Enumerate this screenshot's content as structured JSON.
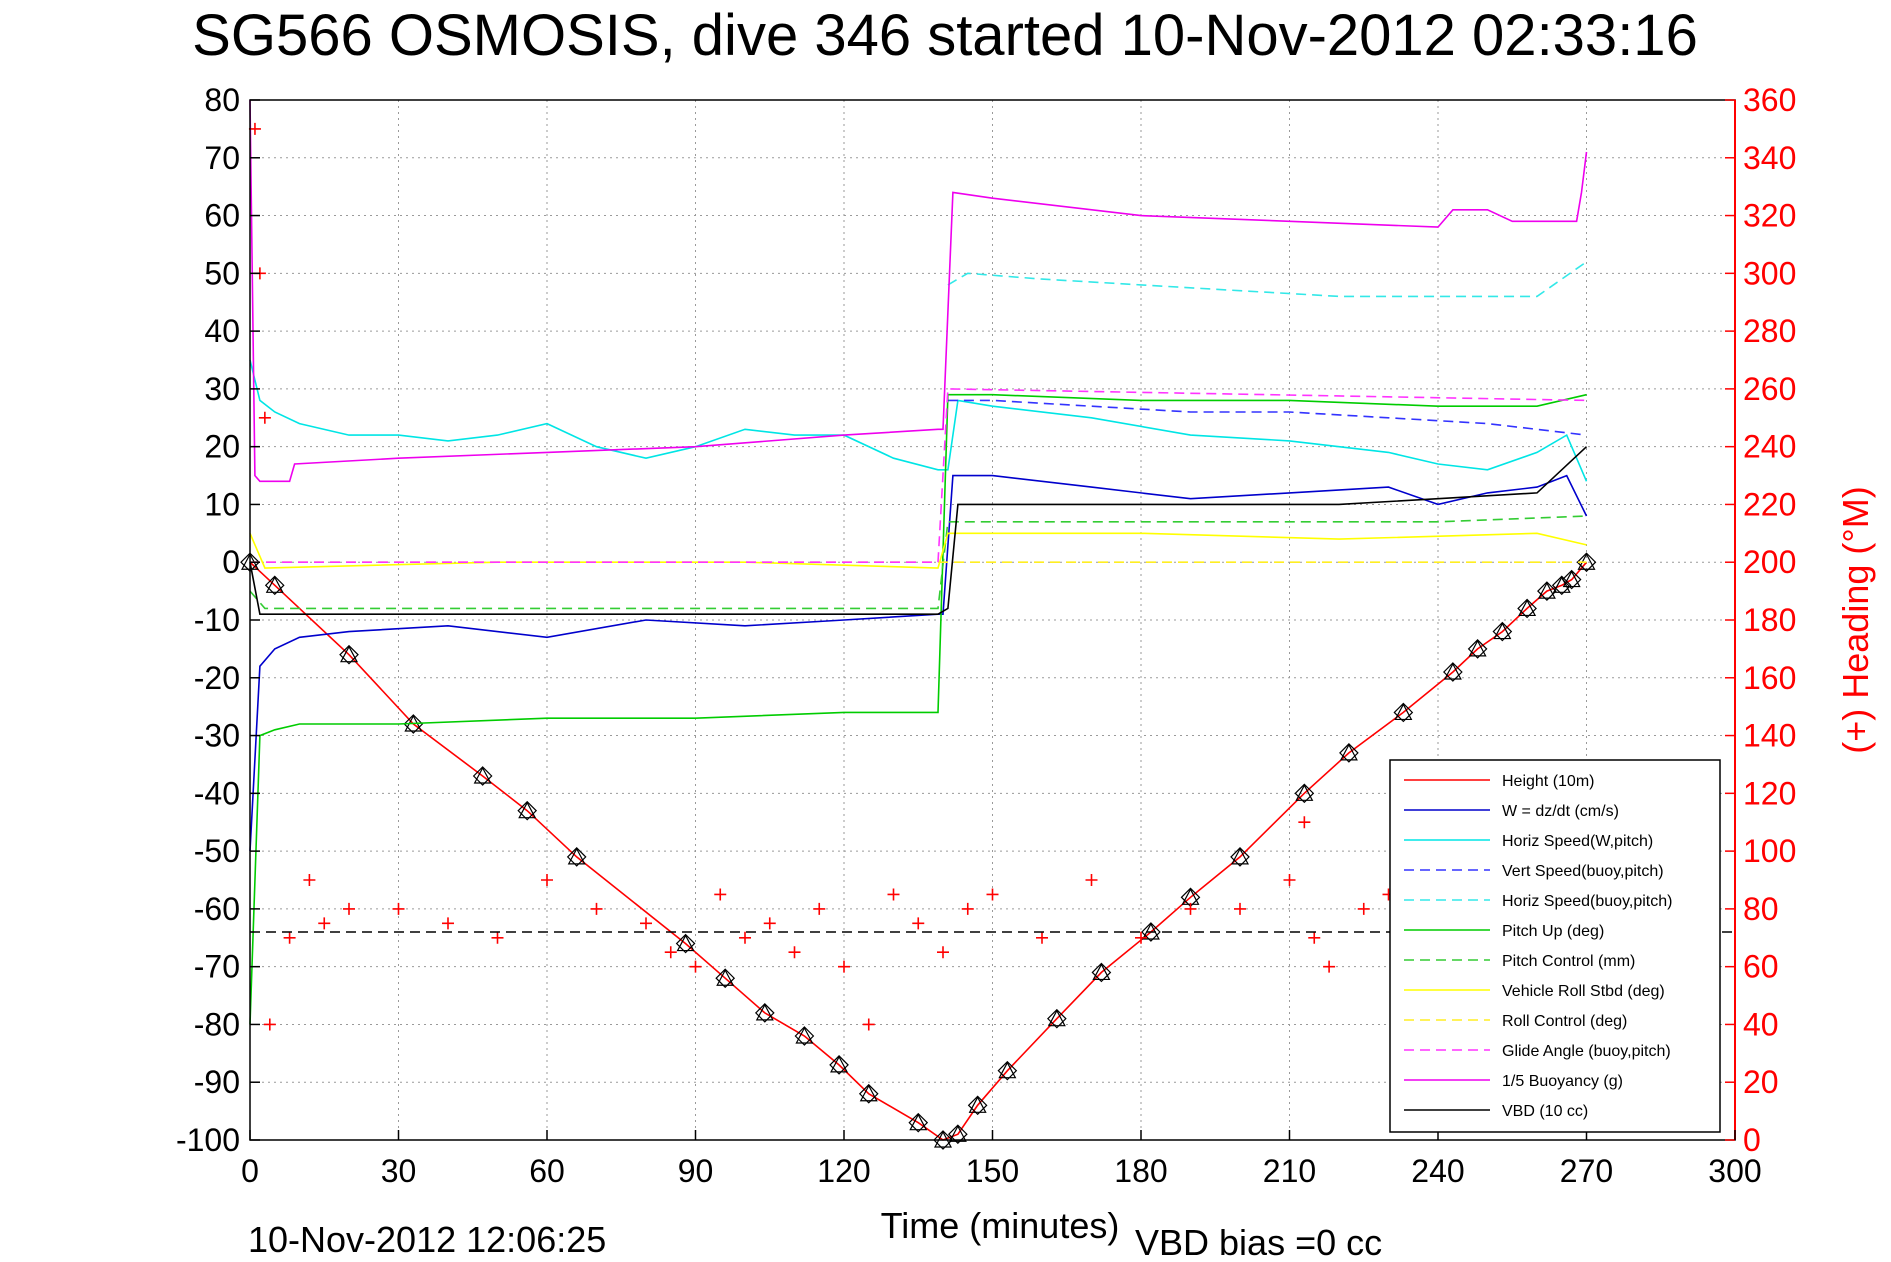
{
  "chart_data": {
    "type": "line",
    "title": "SG566 OSMOSIS, dive 346 started 10-Nov-2012 02:33:16",
    "xlabel": "Time (minutes)",
    "ylabel_left": "",
    "ylabel_right": "(+) Heading (°M)",
    "xlim": [
      0,
      300
    ],
    "ylim_left": [
      -100,
      80
    ],
    "ylim_right": [
      0,
      360
    ],
    "x_ticks": [
      "0",
      "30",
      "60",
      "90",
      "120",
      "150",
      "180",
      "210",
      "240",
      "270",
      "300"
    ],
    "y_ticks_left": [
      "80",
      "70",
      "60",
      "50",
      "40",
      "30",
      "20",
      "10",
      "0",
      "-10",
      "-20",
      "-30",
      "-40",
      "-50",
      "-60",
      "-70",
      "-80",
      "-90",
      "-100"
    ],
    "y_ticks_right": [
      "360",
      "340",
      "320",
      "300",
      "280",
      "260",
      "240",
      "220",
      "200",
      "180",
      "160",
      "140",
      "120",
      "100",
      "80",
      "60",
      "40",
      "20",
      "0"
    ],
    "grid": true,
    "legend_position": "bottom-right",
    "footer_left": "10-Nov-2012 12:06:25",
    "footer_right": "VBD bias =0 cc",
    "colors": {
      "height": "#ff0000",
      "w": "#0000cc",
      "horiz_w": "#00e5e5",
      "vert_buoy": "#3333ff",
      "horiz_buoy": "#33e8e8",
      "pitch_up": "#00cc00",
      "pitch_ctrl": "#33cc33",
      "roll": "#ffff00",
      "roll_ctrl": "#ffee22",
      "glide": "#ff33ff",
      "buoyancy": "#ee00ee",
      "vbd": "#000000",
      "heading": "#ff0000"
    },
    "series": [
      {
        "name": "Height (10m)",
        "key": "height",
        "style": "solid",
        "x": [
          0,
          5,
          20,
          33,
          47,
          56,
          66,
          88,
          96,
          104,
          112,
          119,
          125,
          135,
          140,
          143,
          147,
          153,
          163,
          172,
          182,
          190,
          200,
          213,
          222,
          233,
          243,
          248,
          253,
          258,
          262,
          265,
          267,
          270
        ],
        "y": [
          0,
          -4,
          -16,
          -28,
          -37,
          -43,
          -51,
          -66,
          -72,
          -78,
          -82,
          -87,
          -92,
          -97,
          -100,
          -99,
          -94,
          -88,
          -79,
          -71,
          -64,
          -58,
          -51,
          -40,
          -33,
          -26,
          -19,
          -15,
          -12,
          -8,
          -5,
          -4,
          -3,
          0
        ]
      },
      {
        "name": "W = dz/dt (cm/s)",
        "key": "w",
        "style": "solid",
        "x": [
          0,
          2,
          5,
          10,
          20,
          40,
          60,
          80,
          100,
          120,
          139,
          140,
          142,
          150,
          170,
          190,
          210,
          230,
          240,
          250,
          260,
          266,
          270
        ],
        "y": [
          -50,
          -18,
          -15,
          -13,
          -12,
          -11,
          -13,
          -10,
          -11,
          -10,
          -9,
          -9,
          15,
          15,
          13,
          11,
          12,
          13,
          10,
          12,
          13,
          15,
          8
        ]
      },
      {
        "name": "Horiz Speed(W,pitch)",
        "key": "horiz_w",
        "style": "solid",
        "x": [
          0,
          2,
          5,
          10,
          20,
          30,
          40,
          50,
          60,
          70,
          80,
          90,
          100,
          110,
          120,
          130,
          139,
          141,
          143,
          150,
          170,
          190,
          210,
          230,
          240,
          250,
          260,
          266,
          270
        ],
        "y": [
          35,
          28,
          26,
          24,
          22,
          22,
          21,
          22,
          24,
          20,
          18,
          20,
          23,
          22,
          22,
          18,
          16,
          16,
          28,
          27,
          25,
          22,
          21,
          19,
          17,
          16,
          19,
          22,
          14
        ]
      },
      {
        "name": "Vert Speed(buoy,pitch)",
        "key": "vert_buoy",
        "style": "dashed",
        "x": [
          141,
          150,
          170,
          190,
          210,
          230,
          250,
          270
        ],
        "y": [
          28,
          28,
          27,
          26,
          26,
          25,
          24,
          22
        ]
      },
      {
        "name": "Horiz Speed(buoy,pitch)",
        "key": "horiz_buoy",
        "style": "dashed",
        "x": [
          141,
          145,
          160,
          180,
          200,
          220,
          240,
          260,
          270
        ],
        "y": [
          48,
          50,
          49,
          48,
          47,
          46,
          46,
          46,
          52
        ]
      },
      {
        "name": "Pitch Up (deg)",
        "key": "pitch_up",
        "style": "solid",
        "x": [
          0,
          2,
          5,
          10,
          30,
          60,
          90,
          120,
          139,
          141,
          150,
          180,
          210,
          240,
          260,
          270
        ],
        "y": [
          -80,
          -30,
          -29,
          -28,
          -28,
          -27,
          -27,
          -26,
          -26,
          29,
          29,
          28,
          28,
          27,
          27,
          29
        ]
      },
      {
        "name": "Pitch Control (mm)",
        "key": "pitch_ctrl",
        "style": "dashed",
        "x": [
          0,
          3,
          30,
          60,
          90,
          120,
          139,
          141,
          180,
          210,
          240,
          270
        ],
        "y": [
          -5,
          -8,
          -8,
          -8,
          -8,
          -8,
          -8,
          7,
          7,
          7,
          7,
          8
        ]
      },
      {
        "name": "Vehicle Roll Stbd (deg)",
        "key": "roll",
        "style": "solid",
        "x": [
          0,
          3,
          50,
          100,
          139,
          141,
          180,
          220,
          260,
          270
        ],
        "y": [
          5,
          -1,
          0,
          0,
          -1,
          5,
          5,
          4,
          5,
          3
        ]
      },
      {
        "name": "Roll Control (deg)",
        "key": "roll_ctrl",
        "style": "dashed",
        "x": [
          0,
          139,
          141,
          270
        ],
        "y": [
          0,
          0,
          0,
          0
        ]
      },
      {
        "name": "Glide Angle (buoy,pitch)",
        "key": "glide",
        "style": "dashed",
        "x": [
          0,
          139,
          141,
          270
        ],
        "y": [
          0,
          0,
          30,
          28
        ]
      },
      {
        "name": "1/5 Buoyancy (g)",
        "key": "buoyancy",
        "style": "solid",
        "x": [
          0,
          1,
          2,
          8,
          9,
          30,
          60,
          90,
          120,
          139,
          140,
          142,
          150,
          180,
          210,
          240,
          243,
          250,
          255,
          260,
          268,
          269,
          270
        ],
        "y": [
          80,
          15,
          14,
          14,
          17,
          18,
          19,
          20,
          22,
          23,
          23,
          64,
          63,
          60,
          59,
          58,
          61,
          61,
          59,
          59,
          59,
          64,
          71
        ]
      },
      {
        "name": "VBD (10 cc)",
        "key": "vbd",
        "style": "solid",
        "x": [
          0,
          2,
          139,
          141,
          143,
          180,
          220,
          240,
          260,
          270
        ],
        "y": [
          0,
          -9,
          -9,
          -8,
          10,
          10,
          10,
          11,
          12,
          20
        ]
      },
      {
        "name": "",
        "key": "heading",
        "style": "plus",
        "x": [
          1,
          2,
          3,
          4,
          8,
          12,
          15,
          20,
          30,
          40,
          50,
          60,
          70,
          80,
          85,
          90,
          95,
          100,
          105,
          110,
          115,
          120,
          125,
          130,
          135,
          140,
          145,
          150,
          160,
          170,
          180,
          190,
          200,
          210,
          213,
          215,
          218,
          225,
          230,
          232
        ],
        "y": [
          350,
          300,
          250,
          40,
          70,
          90,
          75,
          80,
          80,
          75,
          70,
          90,
          80,
          75,
          65,
          60,
          85,
          70,
          75,
          65,
          80,
          60,
          40,
          85,
          75,
          65,
          80,
          85,
          70,
          90,
          70,
          80,
          80,
          90,
          110,
          70,
          60,
          80,
          85,
          80
        ]
      },
      {
        "name": "",
        "key": "heading_mean",
        "style": "dashed",
        "x": [
          0,
          300
        ],
        "y": [
          72,
          72
        ]
      }
    ]
  }
}
